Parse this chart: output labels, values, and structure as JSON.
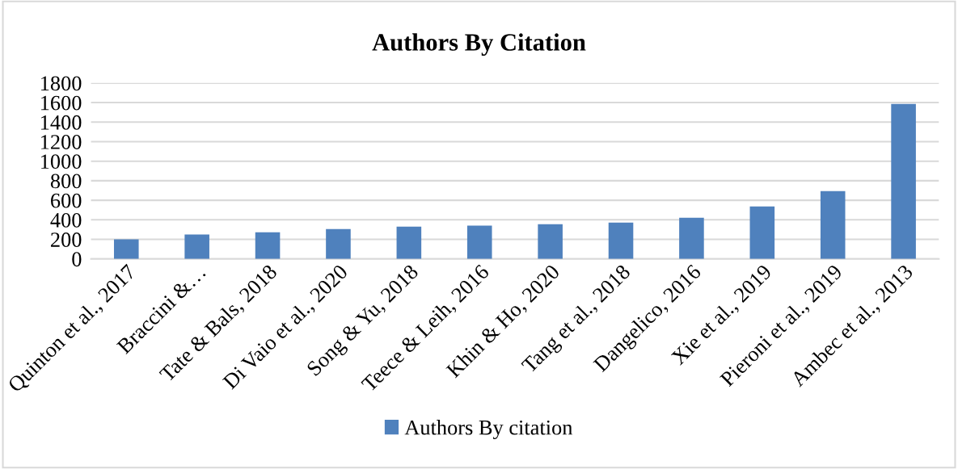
{
  "chart_data": {
    "type": "bar",
    "title": "Authors By Citation",
    "categories": [
      "Quinton et al., 2017",
      "Braccini &…",
      "Tate & Bals, 2018",
      "Di Vaio et al., 2020",
      "Song & Yu, 2018",
      "Teece & Leih, 2016",
      "Khin & Ho, 2020",
      "Tang et al., 2018",
      "Dangelico, 2016",
      "Xie et al., 2019",
      "Pieroni et al., 2019",
      "Ambec et al., 2013"
    ],
    "series": [
      {
        "name": "Authors By citation",
        "color": "#4f81bd",
        "values": [
          200,
          250,
          272,
          306,
          330,
          340,
          355,
          372,
          421,
          537,
          694,
          1585
        ]
      }
    ],
    "ylim": [
      0,
      1800
    ],
    "yticks": [
      0,
      200,
      400,
      600,
      800,
      1000,
      1200,
      1400,
      1600,
      1800
    ],
    "grid": "y",
    "legend": "bottom"
  }
}
